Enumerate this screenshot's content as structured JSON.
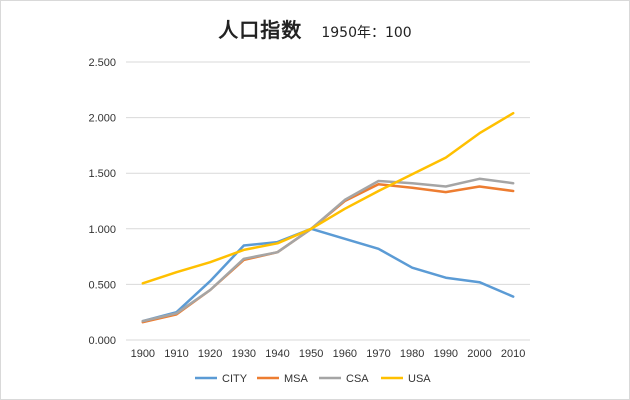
{
  "chart_data": {
    "type": "line",
    "title": "人口指数",
    "subtitle": "1950年：100",
    "categories": [
      "1900",
      "1910",
      "1920",
      "1930",
      "1940",
      "1950",
      "1960",
      "1970",
      "1980",
      "1990",
      "2000",
      "2010"
    ],
    "ylim": [
      0,
      2.5
    ],
    "yticks": [
      "0.000",
      "0.500",
      "1.000",
      "1.500",
      "2.000",
      "2.500"
    ],
    "ytick_values": [
      0,
      0.5,
      1.0,
      1.5,
      2.0,
      2.5
    ],
    "grid": true,
    "legend_position": "bottom",
    "series": [
      {
        "name": "CITY",
        "color": "#5b9bd5",
        "values": [
          0.17,
          0.25,
          0.53,
          0.85,
          0.88,
          1.0,
          0.91,
          0.82,
          0.65,
          0.56,
          0.52,
          0.39
        ]
      },
      {
        "name": "MSA",
        "color": "#ed7d31",
        "values": [
          0.16,
          0.23,
          0.45,
          0.72,
          0.79,
          1.0,
          1.25,
          1.4,
          1.37,
          1.33,
          1.38,
          1.34
        ]
      },
      {
        "name": "CSA",
        "color": "#a5a5a5",
        "values": [
          0.17,
          0.24,
          0.45,
          0.73,
          0.79,
          1.0,
          1.26,
          1.43,
          1.41,
          1.38,
          1.45,
          1.41
        ]
      },
      {
        "name": "USA",
        "color": "#ffc000",
        "values": [
          0.51,
          0.61,
          0.7,
          0.81,
          0.87,
          1.0,
          1.18,
          1.34,
          1.49,
          1.64,
          1.86,
          2.04
        ]
      }
    ]
  }
}
